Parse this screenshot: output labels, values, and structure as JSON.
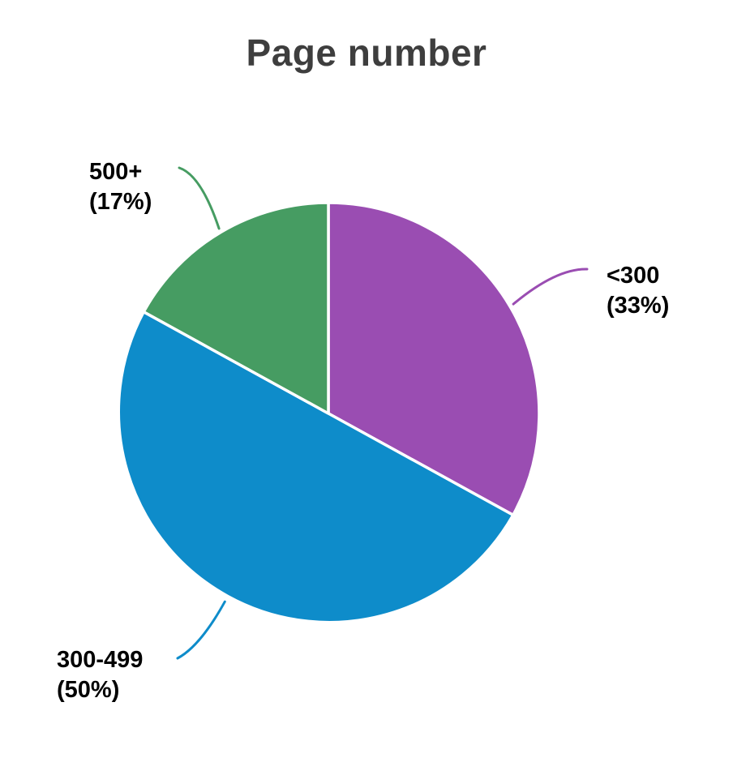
{
  "chart_data": {
    "type": "pie",
    "title": "Page number",
    "title_color": "#3e3e3e",
    "background_color": "#ffffff",
    "separator_color": "#ffffff",
    "label_text_color": "#000000",
    "start_angle_deg_clockwise_from_top": 0,
    "direction": "clockwise",
    "legend_position": "outside-callout-labels",
    "categories": [
      "<300",
      "300-499",
      "500+"
    ],
    "values": [
      33,
      50,
      17
    ],
    "slices": [
      {
        "label": "<300",
        "percent": 33,
        "color": "#9a4db2",
        "callout_line1": "<300",
        "callout_line2": "(33%)"
      },
      {
        "label": "300-499",
        "percent": 50,
        "color": "#0e8cca",
        "callout_line1": "300-499",
        "callout_line2": "(50%)"
      },
      {
        "label": "500+",
        "percent": 17,
        "color": "#469c62",
        "callout_line1": "500+",
        "callout_line2": "(17%)"
      }
    ]
  }
}
